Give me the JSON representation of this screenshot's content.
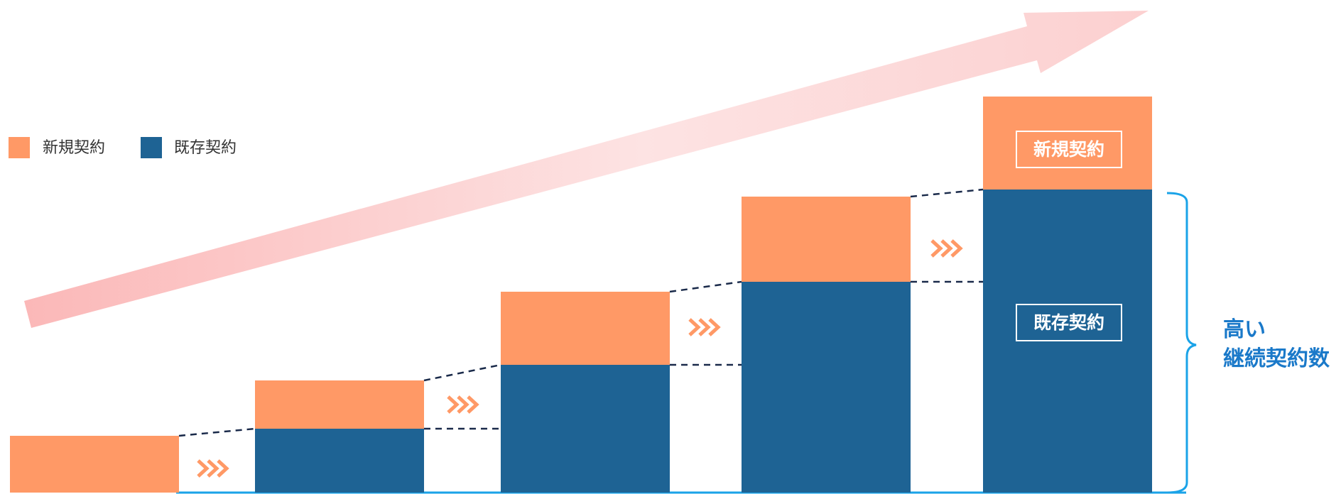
{
  "chart_data": {
    "type": "bar",
    "stacked": true,
    "categories": [
      "",
      "",
      "",
      "",
      ""
    ],
    "series": [
      {
        "name": "既存契約",
        "values": [
          0,
          90,
          180,
          297,
          427
        ],
        "color": "#1e6394"
      },
      {
        "name": "新規契約",
        "values": [
          80,
          68,
          103,
          120,
          131
        ],
        "color": "#ff9966"
      }
    ],
    "ylim": [
      0,
      560
    ],
    "legend_position": "top-left",
    "grid": false,
    "box_labels": {
      "new": "新規契約",
      "existing": "既存契約"
    },
    "annotation": {
      "line1": "高い",
      "line2": "継続契約数"
    },
    "colors": {
      "new": "#ff9966",
      "existing": "#1e6394",
      "dashed": "#1a2a4a",
      "accent": "#1aa3e8",
      "annotation_text": "#1a79c9",
      "arrow": "#fbb8b8"
    }
  }
}
